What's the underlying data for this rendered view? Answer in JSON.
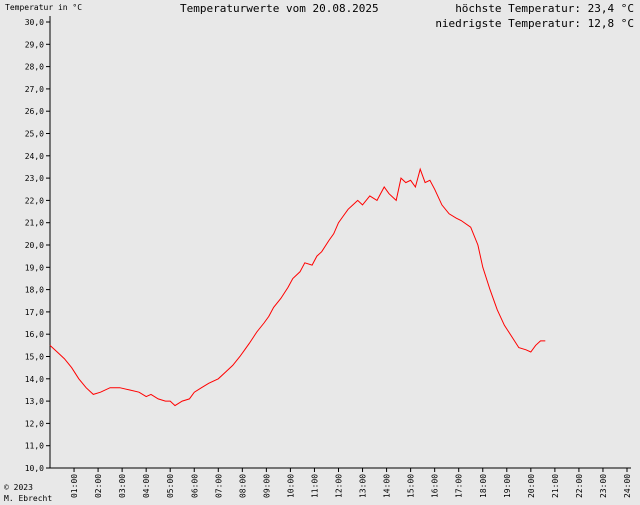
{
  "header": {
    "ylabel": "Temperatur in °C",
    "title": "Temperaturwerte vom 20.08.2025",
    "max_line": "höchste Temperatur: 23,4 °C",
    "min_line": "niedrigste Temperatur: 12,8 °C"
  },
  "footer": {
    "copyright_line": "© 2023",
    "author": "M. Ebrecht"
  },
  "colors": {
    "background": "#e8e8e8",
    "line": "#ff0000",
    "axis": "#000000"
  },
  "chart_data": {
    "type": "line",
    "title": "Temperaturwerte vom 20.08.2025",
    "ylabel": "Temperatur in °C",
    "xlabel": "",
    "ylim": [
      10,
      30
    ],
    "xlim": [
      0,
      24
    ],
    "grid": false,
    "y_ticks": [
      "10,0",
      "11,0",
      "12,0",
      "13,0",
      "14,0",
      "15,0",
      "16,0",
      "17,0",
      "18,0",
      "19,0",
      "20,0",
      "21,0",
      "22,0",
      "23,0",
      "24,0",
      "25,0",
      "26,0",
      "27,0",
      "28,0",
      "29,0",
      "30,0"
    ],
    "x_ticks": [
      "01:00",
      "02:00",
      "03:00",
      "04:00",
      "05:00",
      "06:00",
      "07:00",
      "08:00",
      "09:00",
      "10:00",
      "11:00",
      "12:00",
      "13:00",
      "14:00",
      "15:00",
      "16:00",
      "17:00",
      "18:00",
      "19:00",
      "20:00",
      "21:00",
      "22:00",
      "23:00",
      "24:00"
    ],
    "series": [
      {
        "x": [
          0.0,
          0.3,
          0.6,
          0.9,
          1.2,
          1.5,
          1.8,
          2.1,
          2.5,
          2.9,
          3.3,
          3.7,
          4.0,
          4.2,
          4.5,
          4.8,
          5.0,
          5.2,
          5.5,
          5.8,
          6.0,
          6.3,
          6.6,
          7.0,
          7.3,
          7.6,
          7.9,
          8.1,
          8.3,
          8.6,
          8.9,
          9.1,
          9.3,
          9.6,
          9.9,
          10.1,
          10.4,
          10.6,
          10.9,
          11.1,
          11.3,
          11.6,
          11.8,
          12.0,
          12.2,
          12.4,
          12.6,
          12.8,
          13.0,
          13.3,
          13.6,
          13.9,
          14.1,
          14.4,
          14.6,
          14.8,
          15.0,
          15.2,
          15.4,
          15.6,
          15.8,
          16.0,
          16.3,
          16.6,
          16.9,
          17.1,
          17.5,
          17.8,
          18.0,
          18.3,
          18.6,
          18.9,
          19.2,
          19.5,
          19.8,
          20.0,
          20.2,
          20.4,
          20.6
        ],
        "y": [
          15.5,
          15.2,
          14.9,
          14.5,
          14.0,
          13.6,
          13.3,
          13.4,
          13.6,
          13.6,
          13.5,
          13.4,
          13.2,
          13.3,
          13.1,
          13.0,
          13.0,
          12.8,
          13.0,
          13.1,
          13.4,
          13.6,
          13.8,
          14.0,
          14.3,
          14.6,
          15.0,
          15.3,
          15.6,
          16.1,
          16.5,
          16.8,
          17.2,
          17.6,
          18.1,
          18.5,
          18.8,
          19.2,
          19.1,
          19.5,
          19.7,
          20.2,
          20.5,
          21.0,
          21.3,
          21.6,
          21.8,
          22.0,
          21.8,
          22.2,
          22.0,
          22.6,
          22.3,
          22.0,
          23.0,
          22.8,
          22.9,
          22.6,
          23.4,
          22.8,
          22.9,
          22.5,
          21.8,
          21.4,
          21.2,
          21.1,
          20.8,
          20.0,
          19.0,
          18.0,
          17.1,
          16.4,
          15.9,
          15.4,
          15.3,
          15.2,
          15.5,
          15.7,
          15.7
        ]
      }
    ]
  }
}
